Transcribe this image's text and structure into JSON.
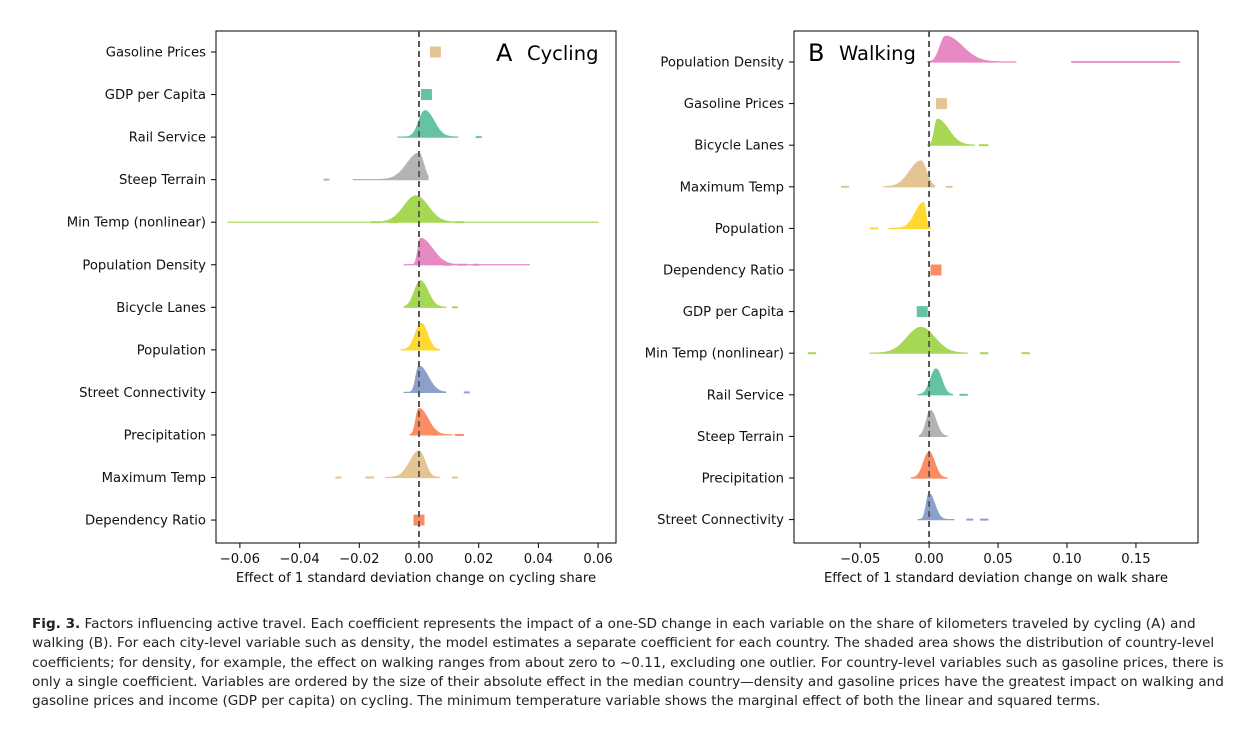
{
  "caption": {
    "label": "Fig. 3.",
    "text": "Factors influencing active travel. Each coefficient represents the impact of a one-SD change in each variable on the share of kilometers traveled by cycling (A) and walking (B). For each city-level variable such as density, the model estimates a separate coefficient for each country. The shaded area shows the distribution of country-level coefficients; for density, for example, the effect on walking ranges from about zero to ~0.11, excluding one outlier. For country-level variables such as gasoline prices, there is only a single coefficient. Variables are ordered by the size of their absolute effect in the median country—density and gasoline prices have the greatest impact on walking and gasoline prices and income (GDP per capita) on cycling. The minimum temperature variable shows the marginal effect of both the linear and squared terms."
  },
  "colors": {
    "gasoline": "#e5c494",
    "teal": "#66c2a5",
    "gray": "#b3b3b3",
    "green": "#a6d854",
    "pink": "#e78ac3",
    "yellow": "#ffd92f",
    "blue": "#8da0cb",
    "orange": "#fc8d62",
    "zero_line": "#555555"
  },
  "chart_data": [
    {
      "type": "ridgeline",
      "panel_letter": "A",
      "title": "Cycling",
      "xlabel": "Effect of 1 standard deviation change on cycling share",
      "xlim": [
        -0.068,
        0.066
      ],
      "xticks": [
        -0.06,
        -0.04,
        -0.02,
        0.0,
        0.02,
        0.04,
        0.06
      ],
      "xtick_labels": [
        "−0.06",
        "−0.04",
        "−0.02",
        "0.00",
        "0.02",
        "0.04",
        "0.06"
      ],
      "series": [
        {
          "label": "Gasoline Prices",
          "color": "gasoline",
          "kind": "point",
          "value": 0.0055
        },
        {
          "label": "GDP per Capita",
          "color": "teal",
          "kind": "point",
          "value": 0.0025
        },
        {
          "label": "Rail Service",
          "color": "teal",
          "kind": "density",
          "peak": 0.002,
          "lo": -0.007,
          "hi": 0.013,
          "spread_l": 0.002,
          "spread_r": 0.003,
          "dashes": [
            [
              0.019,
              0.021
            ]
          ]
        },
        {
          "label": "Steep Terrain",
          "color": "gray",
          "kind": "density",
          "peak": 0.0,
          "lo": -0.022,
          "hi": 0.003,
          "spread_l": 0.004,
          "spread_r": 0.0015,
          "dashes": [
            [
              -0.032,
              -0.03
            ]
          ]
        },
        {
          "label": "Min Temp (nonlinear)",
          "color": "green",
          "kind": "density",
          "peak": -0.001,
          "lo": -0.064,
          "hi": 0.06,
          "spread_l": 0.004,
          "spread_r": 0.004,
          "dashes": [
            [
              -0.016,
              -0.013
            ],
            [
              -0.01,
              -0.007
            ],
            [
              0.012,
              0.015
            ]
          ]
        },
        {
          "label": "Population Density",
          "color": "pink",
          "kind": "density",
          "peak": 0.0005,
          "lo": -0.005,
          "hi": 0.037,
          "spread_l": 0.0008,
          "spread_r": 0.004,
          "dashes": [
            [
              0.008,
              0.011
            ],
            [
              0.013,
              0.016
            ],
            [
              0.018,
              0.02
            ]
          ]
        },
        {
          "label": "Bicycle Lanes",
          "color": "green",
          "kind": "density",
          "peak": 0.0005,
          "lo": -0.005,
          "hi": 0.009,
          "spread_l": 0.002,
          "spread_r": 0.0025,
          "dashes": [
            [
              0.011,
              0.013
            ]
          ]
        },
        {
          "label": "Population",
          "color": "yellow",
          "kind": "density",
          "peak": 0.0008,
          "lo": -0.006,
          "hi": 0.007,
          "spread_l": 0.002,
          "spread_r": 0.002,
          "dashes": []
        },
        {
          "label": "Street Connectivity",
          "color": "blue",
          "kind": "density",
          "peak": 0.0,
          "lo": -0.005,
          "hi": 0.009,
          "spread_l": 0.001,
          "spread_r": 0.003,
          "dashes": [
            [
              0.015,
              0.017
            ]
          ]
        },
        {
          "label": "Precipitation",
          "color": "orange",
          "kind": "density",
          "peak": 0.0,
          "lo": -0.003,
          "hi": 0.011,
          "spread_l": 0.001,
          "spread_r": 0.003,
          "dashes": [
            [
              0.012,
              0.015
            ]
          ]
        },
        {
          "label": "Maximum Temp",
          "color": "gasoline",
          "kind": "density",
          "peak": 0.0,
          "lo": -0.011,
          "hi": 0.007,
          "spread_l": 0.003,
          "spread_r": 0.002,
          "dashes": [
            [
              -0.028,
              -0.026
            ],
            [
              -0.018,
              -0.015
            ],
            [
              0.011,
              0.013
            ]
          ]
        },
        {
          "label": "Dependency Ratio",
          "color": "orange",
          "kind": "point",
          "value": 0.0
        }
      ]
    },
    {
      "type": "ridgeline",
      "panel_letter": "B",
      "title": "Walking",
      "xlabel": "Effect of 1 standard deviation change on walk share",
      "xlim": [
        -0.098,
        0.195
      ],
      "xticks": [
        -0.05,
        0.0,
        0.05,
        0.1,
        0.15
      ],
      "xtick_labels": [
        "−0.05",
        "0.00",
        "0.05",
        "0.10",
        "0.15"
      ],
      "series": [
        {
          "label": "Population Density",
          "color": "pink",
          "kind": "density",
          "peak": 0.012,
          "lo": -0.001,
          "hi": 0.063,
          "spread_l": 0.004,
          "spread_r": 0.012,
          "dashes": [],
          "extra": [
            0.103,
            0.182
          ]
        },
        {
          "label": "Gasoline Prices",
          "color": "gasoline",
          "kind": "point",
          "value": 0.009
        },
        {
          "label": "Bicycle Lanes",
          "color": "green",
          "kind": "density",
          "peak": 0.006,
          "lo": -0.001,
          "hi": 0.033,
          "spread_l": 0.002,
          "spread_r": 0.008,
          "dashes": [
            [
              0.036,
              0.043
            ]
          ]
        },
        {
          "label": "Maximum Temp",
          "color": "gasoline",
          "kind": "density",
          "peak": -0.006,
          "lo": -0.033,
          "hi": 0.004,
          "spread_l": 0.008,
          "spread_r": 0.004,
          "dashes": [
            [
              -0.064,
              -0.058
            ],
            [
              0.012,
              0.017
            ]
          ]
        },
        {
          "label": "Population",
          "color": "yellow",
          "kind": "density",
          "peak": -0.004,
          "lo": -0.029,
          "hi": 0.001,
          "spread_l": 0.006,
          "spread_r": 0.0015,
          "dashes": [
            [
              -0.043,
              -0.037
            ]
          ]
        },
        {
          "label": "Dependency Ratio",
          "color": "orange",
          "kind": "point",
          "value": 0.005
        },
        {
          "label": "GDP per Capita",
          "color": "teal",
          "kind": "point",
          "value": -0.005
        },
        {
          "label": "Min Temp (nonlinear)",
          "color": "green",
          "kind": "density",
          "peak": -0.006,
          "lo": -0.043,
          "hi": 0.028,
          "spread_l": 0.01,
          "spread_r": 0.01,
          "dashes": [
            [
              -0.088,
              -0.082
            ],
            [
              0.037,
              0.043
            ],
            [
              0.067,
              0.073
            ]
          ]
        },
        {
          "label": "Rail Service",
          "color": "teal",
          "kind": "density",
          "peak": 0.005,
          "lo": -0.008,
          "hi": 0.017,
          "spread_l": 0.004,
          "spread_r": 0.004,
          "dashes": [
            [
              0.022,
              0.028
            ]
          ]
        },
        {
          "label": "Steep Terrain",
          "color": "gray",
          "kind": "density",
          "peak": 0.001,
          "lo": -0.007,
          "hi": 0.013,
          "spread_l": 0.003,
          "spread_r": 0.004,
          "dashes": []
        },
        {
          "label": "Precipitation",
          "color": "orange",
          "kind": "density",
          "peak": 0.0,
          "lo": -0.013,
          "hi": 0.013,
          "spread_l": 0.004,
          "spread_r": 0.004,
          "dashes": []
        },
        {
          "label": "Street Connectivity",
          "color": "blue",
          "kind": "density",
          "peak": 0.0,
          "lo": -0.008,
          "hi": 0.018,
          "spread_l": 0.002,
          "spread_r": 0.004,
          "dashes": [
            [
              0.027,
              0.032
            ],
            [
              0.037,
              0.043
            ]
          ]
        }
      ]
    }
  ]
}
